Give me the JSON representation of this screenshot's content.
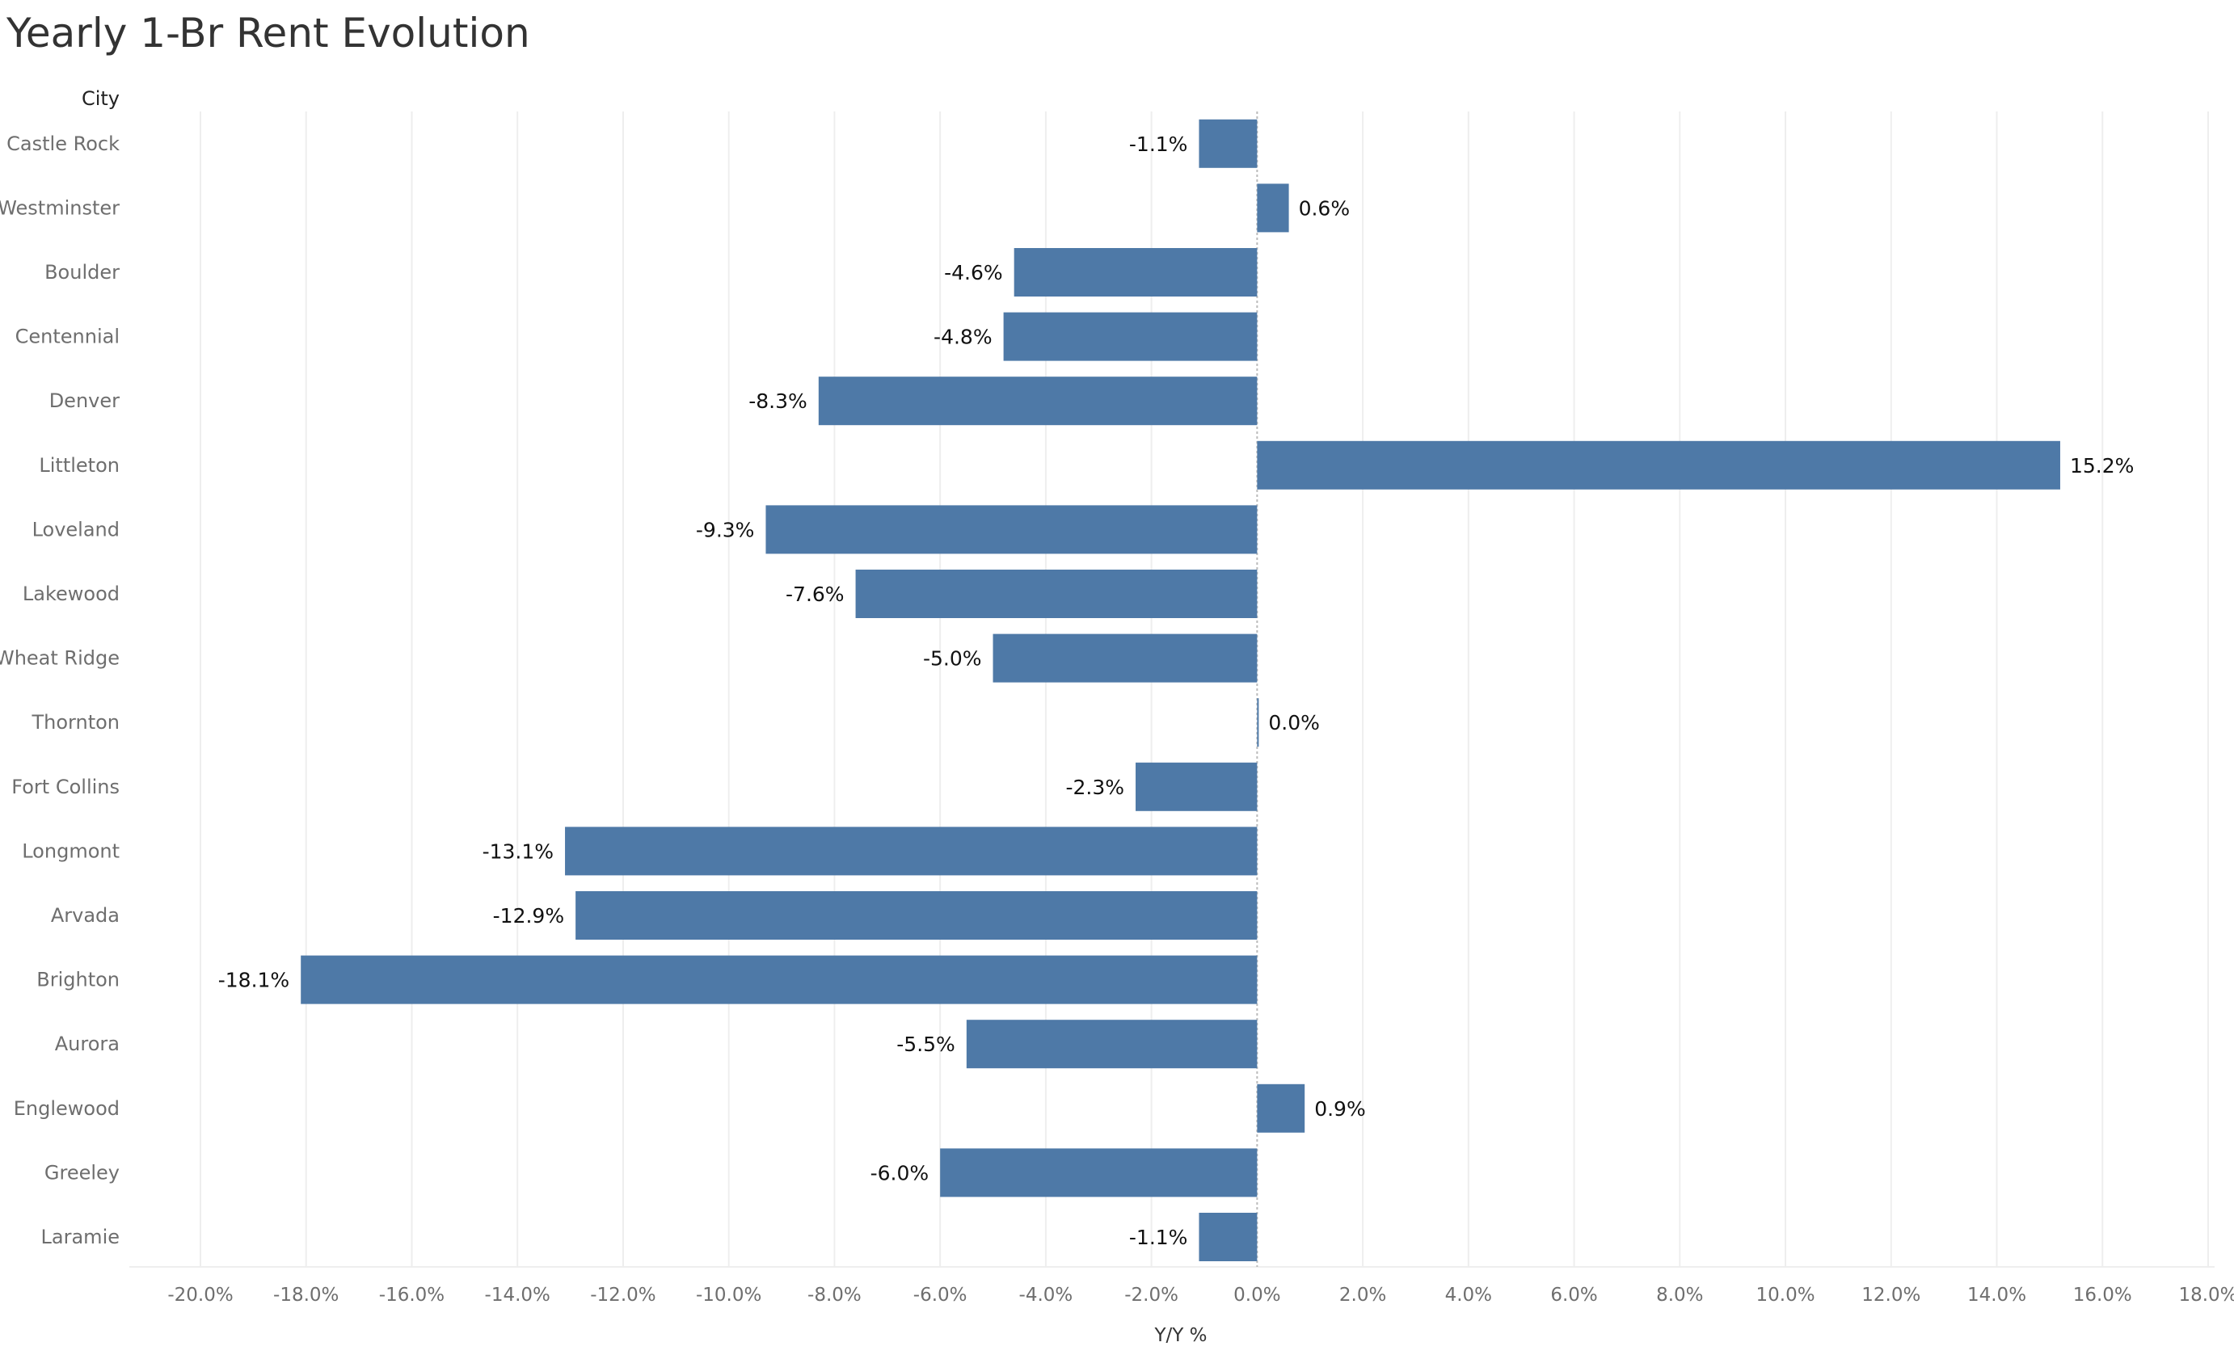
{
  "chart_data": {
    "type": "bar",
    "orientation": "horizontal",
    "title": "Yearly 1-Br Rent Evolution",
    "row_header": "City",
    "xlabel": "Y/Y %",
    "ylabel": "City",
    "xlim": [
      -20,
      18
    ],
    "x_ticks": [
      -20,
      -18,
      -16,
      -14,
      -12,
      -10,
      -8,
      -6,
      -4,
      -2,
      0,
      2,
      4,
      6,
      8,
      10,
      12,
      14,
      16,
      18
    ],
    "x_tick_labels": [
      "-20.0%",
      "-18.0%",
      "-16.0%",
      "-14.0%",
      "-12.0%",
      "-10.0%",
      "-8.0%",
      "-6.0%",
      "-4.0%",
      "-2.0%",
      "0.0%",
      "2.0%",
      "4.0%",
      "6.0%",
      "8.0%",
      "10.0%",
      "12.0%",
      "14.0%",
      "16.0%",
      "18.0%"
    ],
    "grid": true,
    "categories": [
      "Castle Rock",
      "Westminster",
      "Boulder",
      "Centennial",
      "Denver",
      "Littleton",
      "Loveland",
      "Lakewood",
      "Wheat Ridge",
      "Thornton",
      "Fort Collins",
      "Longmont",
      "Arvada",
      "Brighton",
      "Aurora",
      "Englewood",
      "Greeley",
      "Laramie"
    ],
    "values": [
      -1.1,
      0.6,
      -4.6,
      -4.8,
      -8.3,
      15.2,
      -9.3,
      -7.6,
      -5.0,
      0.02,
      -2.3,
      -13.1,
      -12.9,
      -18.1,
      -5.5,
      0.9,
      -6.0,
      -1.1
    ],
    "value_labels": [
      "-1.1%",
      "0.6%",
      "-4.6%",
      "-4.8%",
      "-8.3%",
      "15.2%",
      "-9.3%",
      "-7.6%",
      "-5.0%",
      "0.0%",
      "-2.3%",
      "-13.1%",
      "-12.9%",
      "-18.1%",
      "-5.5%",
      "0.9%",
      "-6.0%",
      "-1.1%"
    ],
    "colors": {
      "bar": "#4e79a7",
      "gridline": "#eeeeee",
      "zero_line": "#bbbbbb"
    }
  }
}
